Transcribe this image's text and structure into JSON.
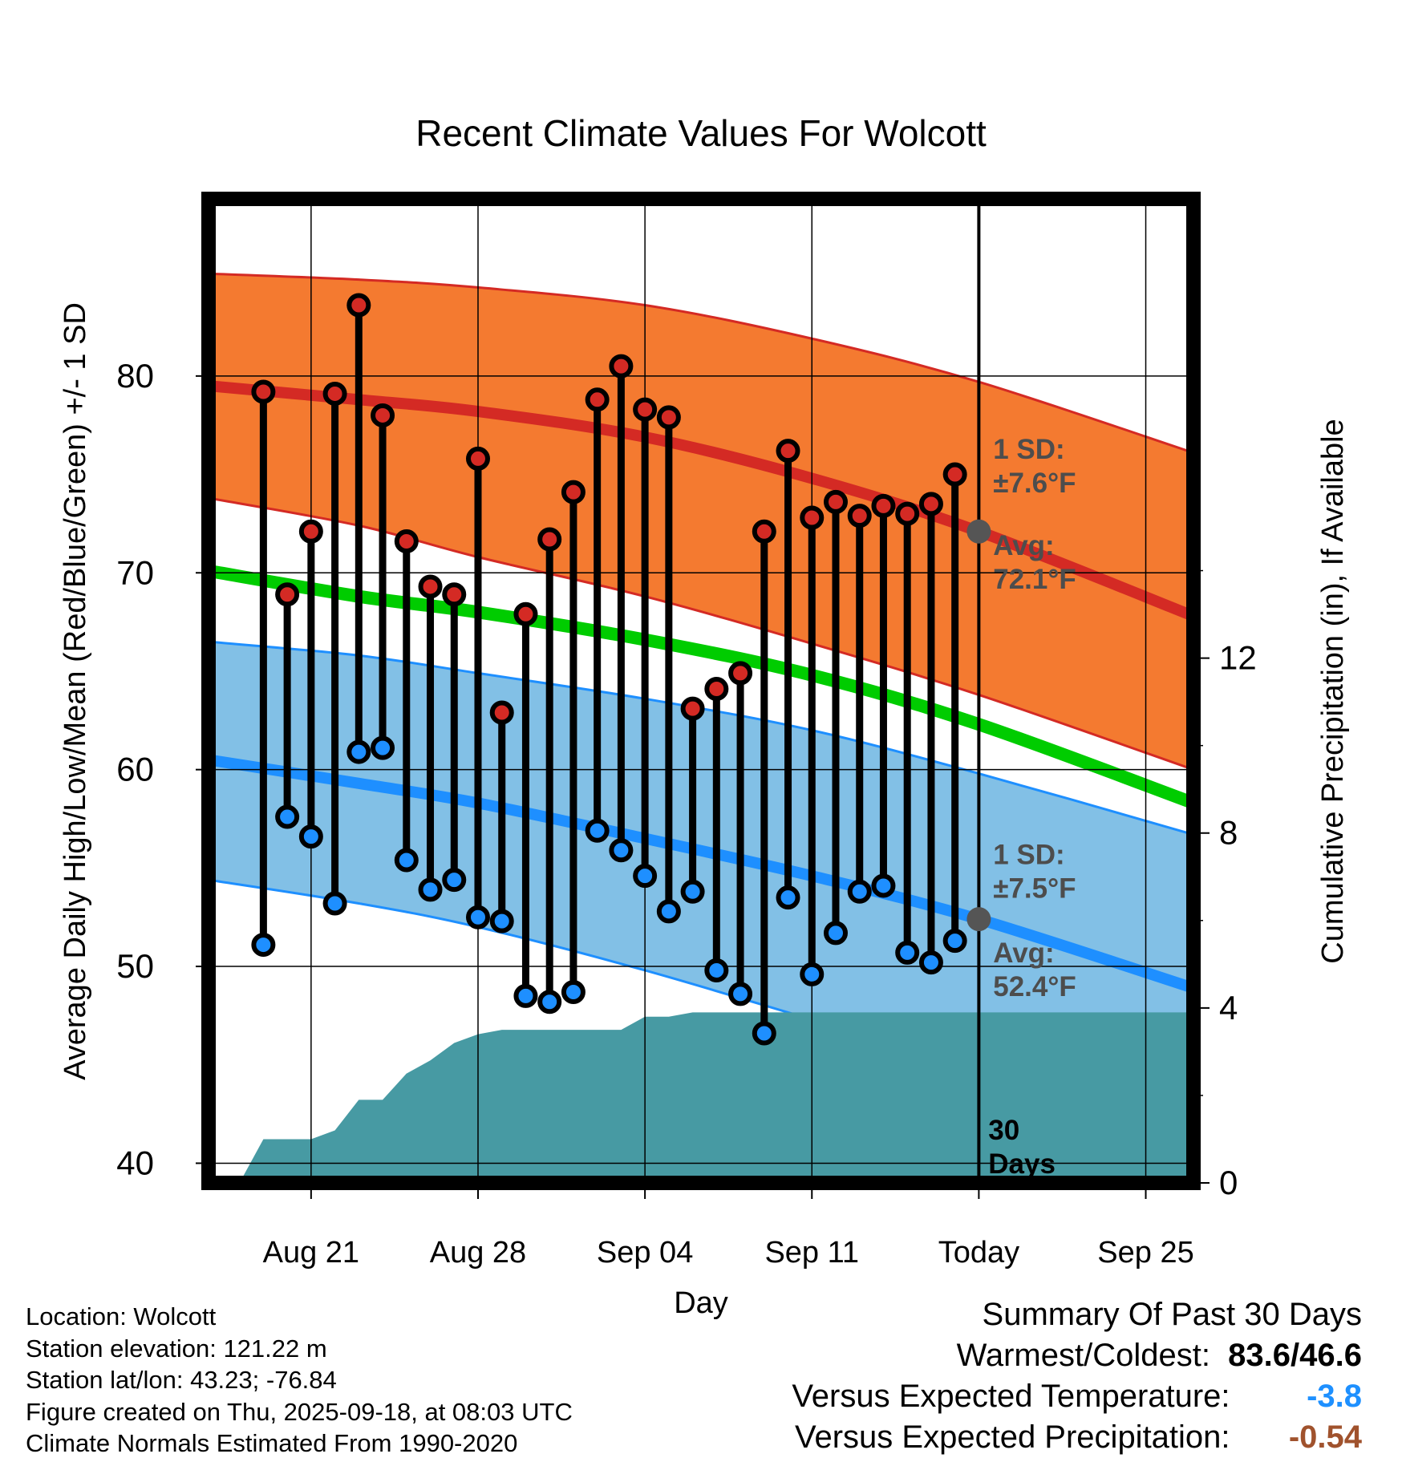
{
  "chart_data": {
    "type": "line",
    "title": "Recent Climate Values For Wolcott",
    "xlabel": "Day",
    "ylabel": "Average Daily High/Low/Mean (Red/Blue/Green) +/- 1 SD",
    "y2label": "Cumulative Precipitation (in), If Available",
    "ylim": [
      39,
      89
    ],
    "y2lim": [
      0,
      22.5
    ],
    "xlim": [
      -1.3,
      40
    ],
    "yticks": [
      40,
      50,
      60,
      70,
      80
    ],
    "y2ticks": [
      0,
      4,
      8,
      12
    ],
    "xticks": [
      {
        "day": 3,
        "label": "Aug 21"
      },
      {
        "day": 10,
        "label": "Aug 28"
      },
      {
        "day": 17,
        "label": "Sep 04"
      },
      {
        "day": 24,
        "label": "Sep 11"
      },
      {
        "day": 31,
        "label": "Today"
      },
      {
        "day": 38,
        "label": "Sep 25"
      }
    ],
    "today_day": 31,
    "normals": {
      "day": [
        -1.3,
        5,
        10,
        17,
        24,
        31,
        40
      ],
      "avg_high": [
        79.5,
        78.8,
        78.2,
        76.9,
        74.8,
        72.1,
        67.8
      ],
      "high_sd_upper": [
        85.2,
        84.9,
        84.5,
        83.6,
        81.9,
        79.7,
        76.1
      ],
      "high_sd_lower": [
        73.8,
        72.4,
        70.8,
        68.8,
        66.4,
        63.8,
        60.0
      ],
      "avg_mean": [
        70.1,
        68.8,
        68.0,
        66.6,
        64.8,
        62.3,
        58.3
      ],
      "avg_low": [
        60.5,
        59.3,
        58.3,
        56.5,
        54.6,
        52.4,
        48.9
      ],
      "low_sd_upper": [
        66.5,
        65.8,
        64.9,
        63.6,
        62.0,
        59.8,
        56.7
      ],
      "low_sd_lower": [
        54.4,
        53.2,
        52.0,
        49.8,
        47.3,
        44.8,
        40.5
      ]
    },
    "series": [
      {
        "name": "Daily High",
        "color": "#d62728",
        "values": [
          79.2,
          68.9,
          72.1,
          79.1,
          83.6,
          78.0,
          71.6,
          69.3,
          68.9,
          75.8,
          62.9,
          67.9,
          71.7,
          74.1,
          78.8,
          80.5,
          78.3,
          77.9,
          63.1,
          64.1,
          64.9,
          72.1,
          76.2,
          72.8,
          73.6,
          72.9,
          73.4,
          73.0,
          73.5,
          75.0
        ]
      },
      {
        "name": "Daily Low",
        "color": "#1e90ff",
        "values": [
          51.1,
          57.6,
          56.6,
          53.2,
          60.9,
          61.1,
          55.4,
          53.9,
          54.4,
          52.5,
          52.3,
          48.5,
          48.2,
          48.7,
          56.9,
          55.9,
          54.6,
          52.8,
          53.8,
          49.8,
          48.6,
          46.6,
          53.5,
          49.6,
          51.7,
          53.8,
          54.1,
          50.7,
          50.2,
          51.3
        ]
      }
    ],
    "precip_cumulative": {
      "day": [
        -0.5,
        0,
        0.5,
        1,
        2,
        3,
        4,
        5,
        6,
        7,
        8,
        9,
        10,
        11,
        12,
        13,
        14,
        15,
        16,
        17,
        18,
        19,
        20,
        21,
        22,
        23,
        24,
        25,
        26,
        27,
        28,
        29,
        30,
        31,
        40
      ],
      "values": [
        0,
        0,
        0.5,
        1.0,
        1.0,
        1.0,
        1.2,
        1.9,
        1.9,
        2.5,
        2.8,
        3.2,
        3.4,
        3.5,
        3.5,
        3.5,
        3.5,
        3.5,
        3.5,
        3.8,
        3.8,
        3.9,
        3.9,
        3.9,
        3.9,
        3.9,
        3.9,
        3.9,
        3.9,
        3.9,
        3.9,
        3.9,
        3.9,
        3.9,
        3.9
      ]
    },
    "annotations": [
      {
        "text_line1": "1 SD:",
        "text_line2": "±7.6°F",
        "day": 31.6,
        "y": 75.8
      },
      {
        "text_line1": "Avg:",
        "text_line2": "72.1°F",
        "day": 31.6,
        "y": 70.9
      },
      {
        "text_line1": "1 SD:",
        "text_line2": "±7.5°F",
        "day": 31.6,
        "y": 55.2
      },
      {
        "text_line1": "Avg:",
        "text_line2": "52.4°F",
        "day": 31.6,
        "y": 50.2
      },
      {
        "text_line1": "30",
        "text_line2": "Days",
        "day": 31.4,
        "y": 41.2
      }
    ]
  },
  "info": {
    "location": "Location: Wolcott",
    "elevation": "Station elevation: 121.22 m",
    "latlon": "Station lat/lon: 43.23; -76.84",
    "created": "Figure created on Thu, 2025-09-18, at 08:03 UTC",
    "normals": "Climate Normals Estimated From 1990-2020"
  },
  "summary": {
    "title": "Summary Of Past 30 Days",
    "warm_cold_label": "Warmest/Coldest:",
    "warm_cold_value": "83.6/46.6",
    "temp_label": "Versus Expected Temperature:",
    "temp_value": "-3.8",
    "temp_color": "#1e90ff",
    "precip_label": "Versus Expected Precipitation:",
    "precip_value": "-0.54",
    "precip_color": "#a0522d"
  },
  "colors": {
    "high_band": "#f47a30",
    "low_band": "#82c0e6",
    "high_line": "#d42a24",
    "low_line": "#1e8fff",
    "mean_line": "#00cc00",
    "precip_fill": "#479aa3",
    "annotation": "#4d4d4d"
  }
}
